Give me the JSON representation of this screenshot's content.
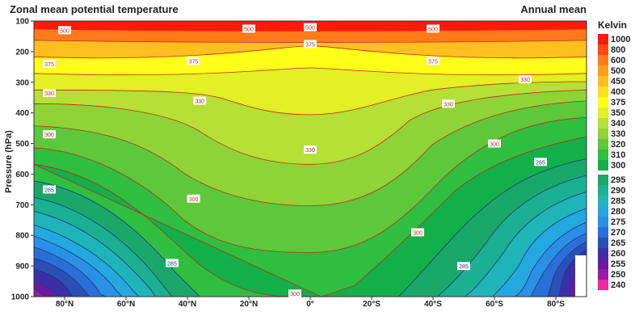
{
  "chart_data": {
    "type": "contour",
    "title": "Zonal mean potential temperature",
    "subtitle": "Annual mean",
    "ylabel": "Pressure (hPa)",
    "xlabel": "",
    "x_ticks": [
      "80°N",
      "60°N",
      "40°N",
      "20°N",
      "0°",
      "20°S",
      "40°S",
      "60°S",
      "80°S"
    ],
    "y_ticks": [
      "100",
      "200",
      "300",
      "400",
      "500",
      "600",
      "700",
      "800",
      "900",
      "1000"
    ],
    "legend_title": "Kelvin",
    "levels": [
      {
        "label": "1000",
        "color": "#ff1a0a"
      },
      {
        "label": "800",
        "color": "#ff4a12"
      },
      {
        "label": "600",
        "color": "#ff7a1a"
      },
      {
        "label": "500",
        "color": "#ff9e1c"
      },
      {
        "label": "450",
        "color": "#ffbf1f"
      },
      {
        "label": "400",
        "color": "#ffe01f"
      },
      {
        "label": "375",
        "color": "#ffff1a"
      },
      {
        "label": "350",
        "color": "#e2f025"
      },
      {
        "label": "340",
        "color": "#b5e035"
      },
      {
        "label": "330",
        "color": "#8ed437"
      },
      {
        "label": "320",
        "color": "#5cc83a"
      },
      {
        "label": "310",
        "color": "#2ebf40"
      },
      {
        "label": "300",
        "color": "#12b048"
      },
      {
        "label": "295",
        "color": "#1aa86a"
      },
      {
        "label": "290",
        "color": "#1bb092"
      },
      {
        "label": "285",
        "color": "#1fb4b8"
      },
      {
        "label": "280",
        "color": "#24a8e0"
      },
      {
        "label": "275",
        "color": "#2a90e6"
      },
      {
        "label": "270",
        "color": "#2a6fd6"
      },
      {
        "label": "265",
        "color": "#2a50b8"
      },
      {
        "label": "260",
        "color": "#3b2fa8"
      },
      {
        "label": "255",
        "color": "#6a1aa0"
      },
      {
        "label": "250",
        "color": "#9a1aa8"
      },
      {
        "label": "240",
        "color": "#ee2aa0"
      }
    ],
    "contour_labels": [
      {
        "value": "500",
        "x": "80°N",
        "p": 130
      },
      {
        "value": "500",
        "x": "20°N",
        "p": 125
      },
      {
        "value": "500",
        "x": "0°",
        "p": 120
      },
      {
        "value": "500",
        "x": "40°S",
        "p": 125
      },
      {
        "value": "375",
        "x": "85°N",
        "p": 240
      },
      {
        "value": "375",
        "x": "38°N",
        "p": 230
      },
      {
        "value": "375",
        "x": "0°",
        "p": 175
      },
      {
        "value": "375",
        "x": "40°S",
        "p": 230
      },
      {
        "value": "330",
        "x": "85°N",
        "p": 335
      },
      {
        "value": "330",
        "x": "36°N",
        "p": 360
      },
      {
        "value": "330",
        "x": "0°",
        "p": 520
      },
      {
        "value": "330",
        "x": "45°S",
        "p": 370
      },
      {
        "value": "330",
        "x": "70°S",
        "p": 290
      },
      {
        "value": "300",
        "x": "85°N",
        "p": 470
      },
      {
        "value": "300",
        "x": "38°N",
        "p": 680
      },
      {
        "value": "300",
        "x": "5°N",
        "p": 990
      },
      {
        "value": "300",
        "x": "35°S",
        "p": 790
      },
      {
        "value": "300",
        "x": "60°S",
        "p": 500
      },
      {
        "value": "285",
        "x": "85°N",
        "p": 650
      },
      {
        "value": "285",
        "x": "45°N",
        "p": 890
      },
      {
        "value": "285",
        "x": "50°S",
        "p": 900
      },
      {
        "value": "285",
        "x": "75°S",
        "p": 560
      }
    ]
  }
}
